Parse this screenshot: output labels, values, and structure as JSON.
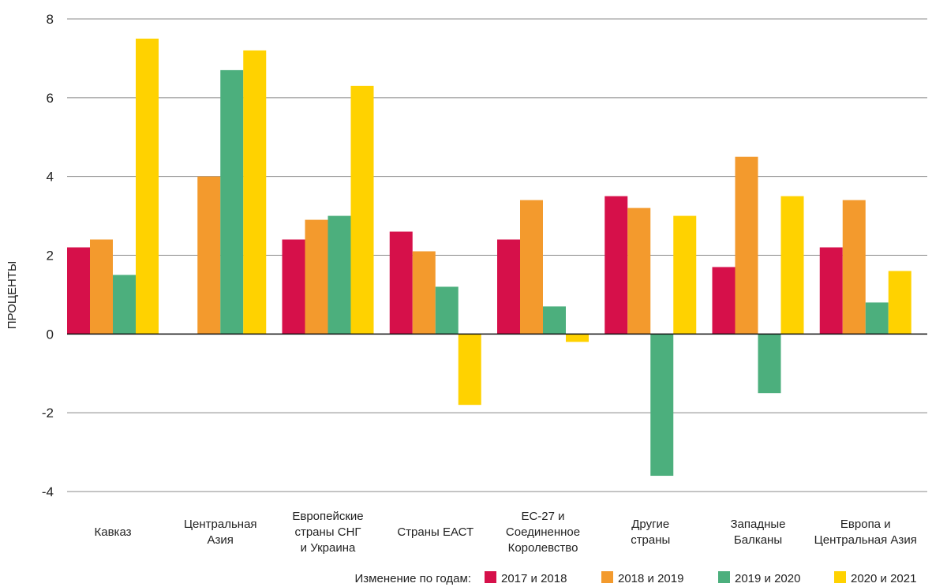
{
  "chart_data": {
    "type": "bar",
    "title": "",
    "xlabel": "",
    "ylabel": "ПРОЦЕНТЫ",
    "ylim": [
      -4,
      8
    ],
    "yticks": [
      -4,
      -2,
      0,
      2,
      4,
      6,
      8
    ],
    "grid": true,
    "legend_position": "bottom-right",
    "legend_title": "Изменение по годам:",
    "categories": [
      [
        "Кавказ"
      ],
      [
        "Центральная",
        "Азия"
      ],
      [
        "Европейские",
        "страны СНГ",
        "и Украина"
      ],
      [
        "Страны ЕАСТ"
      ],
      [
        "ЕС-27 и",
        "Соединенное",
        "Королевство"
      ],
      [
        "Другие",
        "страны"
      ],
      [
        "Западные",
        "Балканы"
      ],
      [
        "Европа и",
        "Центральная Азия"
      ]
    ],
    "series": [
      {
        "name": "2017 и 2018",
        "color": "#d6104a",
        "values": [
          2.2,
          null,
          2.4,
          2.6,
          2.4,
          3.5,
          1.7,
          2.2
        ]
      },
      {
        "name": "2018 и 2019",
        "color": "#f39a2d",
        "values": [
          2.4,
          4.0,
          2.9,
          2.1,
          3.4,
          3.2,
          4.5,
          3.4
        ]
      },
      {
        "name": "2019 и 2020",
        "color": "#4caf7d",
        "values": [
          1.5,
          6.7,
          3.0,
          1.2,
          0.7,
          -3.6,
          -1.5,
          0.8
        ]
      },
      {
        "name": "2020 и 2021",
        "color": "#ffd200",
        "values": [
          7.5,
          7.2,
          6.3,
          -1.8,
          -0.2,
          3.0,
          3.5,
          1.6
        ]
      }
    ]
  }
}
